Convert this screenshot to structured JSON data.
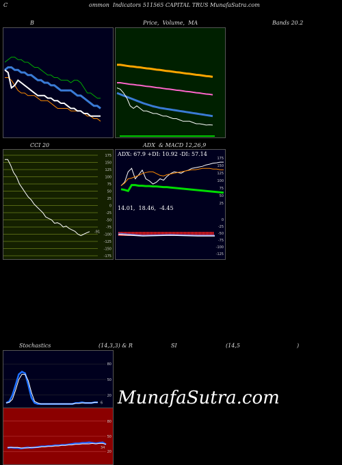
{
  "header": {
    "left_letter": "C",
    "title": "ommon  Indicators 511565 CAPITAL TRUS MunafaSutra.com"
  },
  "labels": {
    "bollinger_b": "B",
    "price_ma": "Price,  Volume,  MA",
    "bands": "Bands 20.2",
    "cci": "CCI 20",
    "adx_macd": "ADX  & MACD 12,26,9",
    "stoch_a": "Stochastics",
    "stoch_b": "(14,3,3) & R",
    "stoch_c": "SI",
    "stoch_d": "(14,5",
    "stoch_e": ")"
  },
  "adx_text": "ADX: 67.9 +DI: 10.92 -DI: 57.14",
  "macd_text": "14.01,  18.46,  -4.45",
  "cci_last_label": "-91",
  "stoch_last_label": "6",
  "rsi_last_label": "34",
  "watermark": "MunafaSutra.com",
  "colors": {
    "panel_bg_dark": "#00001e",
    "panel_bg_green": "#002000",
    "panel_bg_cci": "#142000",
    "panel_bg_rsi": "#8b0000",
    "upper_band": "#00aa00",
    "lower_band": "#ff8c00",
    "mid_band": "#3a7bd5",
    "price": "#ffffff",
    "adx_line": "#00dd00",
    "plus_di": "#ffffff",
    "minus_di": "#ff8c00",
    "stoch_k": "#1e6fff",
    "rsi_line": "#2060ff"
  },
  "chart_data": [
    {
      "type": "line",
      "name_key": "bollinger",
      "x": [
        1,
        2,
        3,
        4,
        5,
        6,
        7,
        8,
        9,
        10,
        11,
        12,
        13,
        14,
        15,
        16,
        17,
        18,
        19,
        20,
        21,
        22,
        23,
        24,
        25,
        26,
        27,
        28,
        29,
        30
      ],
      "series": [
        {
          "values": [
            48,
            49,
            50,
            50,
            49,
            49,
            48,
            48,
            47,
            46,
            46,
            45,
            44,
            43,
            43,
            42,
            42,
            41,
            41,
            41,
            40,
            41,
            41,
            40,
            38,
            36,
            36,
            35,
            34,
            34
          ]
        },
        {
          "values": [
            45,
            46,
            46,
            45,
            45,
            44,
            44,
            43,
            43,
            42,
            41,
            41,
            40,
            40,
            39,
            39,
            38,
            37,
            37,
            37,
            37,
            36,
            35,
            35,
            34,
            33,
            32,
            31,
            31,
            30
          ]
        },
        {
          "values": [
            42,
            42,
            41,
            39,
            37,
            36,
            36,
            35,
            35,
            35,
            34,
            33,
            33,
            33,
            32,
            31,
            30,
            30,
            30,
            30,
            29,
            29,
            29,
            29,
            28,
            27,
            27,
            26,
            26,
            25
          ]
        },
        {
          "values": [
            45,
            44,
            38,
            39,
            41,
            40,
            39,
            38,
            37,
            36,
            35,
            35,
            35,
            34,
            34,
            33,
            33,
            32,
            32,
            31,
            30,
            30,
            29,
            29,
            28,
            28,
            27,
            27,
            27,
            27
          ]
        }
      ]
    },
    {
      "type": "line",
      "name_key": "price_ma",
      "x": [
        1,
        2,
        3,
        4,
        5,
        6,
        7,
        8,
        9,
        10,
        11,
        12,
        13,
        14,
        15,
        16,
        17,
        18,
        19,
        20,
        21,
        22,
        23,
        24,
        25,
        26,
        27,
        28,
        29,
        30
      ],
      "series": [
        {
          "values": [
            47,
            47,
            46.8,
            46.6,
            46.4,
            46.3,
            46.1,
            46,
            45.8,
            45.6,
            45.5,
            45.3,
            45.1,
            45,
            44.8,
            44.6,
            44.5,
            44.3,
            44.1,
            44,
            43.8,
            43.6,
            43.5,
            43.3,
            43.1,
            43,
            42.8,
            42.6,
            42.5,
            42.3
          ]
        },
        {
          "values": [
            40,
            40,
            39.8,
            39.6,
            39.4,
            39.3,
            39.1,
            39,
            38.8,
            38.6,
            38.5,
            38.3,
            38.1,
            38,
            37.8,
            37.6,
            37.5,
            37.3,
            37.1,
            37,
            36.8,
            36.6,
            36.5,
            36.3,
            36.1,
            36,
            35.8,
            35.6,
            35.5,
            35.3
          ]
        },
        {
          "values": [
            36,
            35.5,
            35,
            34.5,
            34,
            33.5,
            33,
            32.5,
            32,
            31.6,
            31.2,
            30.8,
            30.5,
            30.2,
            30,
            29.8,
            29.6,
            29.4,
            29.2,
            29,
            28.8,
            28.6,
            28.4,
            28.2,
            28,
            27.8,
            27.6,
            27.4,
            27.2,
            27
          ]
        },
        {
          "values": [
            38,
            37.5,
            36,
            34,
            31,
            30,
            31,
            30,
            29,
            29,
            28.5,
            28,
            28,
            27.5,
            27,
            27,
            26.5,
            26,
            26,
            25.5,
            25,
            25,
            25,
            24.5,
            24,
            24,
            23.8,
            23.5,
            23.6,
            23.5
          ]
        }
      ]
    },
    {
      "type": "line",
      "name_key": "cci",
      "ylim": [
        -175,
        175
      ],
      "yticks": [
        175,
        150,
        125,
        100,
        75,
        50,
        25,
        0,
        -25,
        -50,
        -75,
        -100,
        -125,
        -150,
        -175
      ],
      "x": [
        1,
        2,
        3,
        4,
        5,
        6,
        7,
        8,
        9,
        10,
        11,
        12,
        13,
        14,
        15,
        16,
        17,
        18,
        19,
        20,
        21,
        22,
        23,
        24,
        25,
        26,
        27,
        28,
        29,
        30
      ],
      "values": [
        160,
        160,
        140,
        115,
        100,
        75,
        60,
        45,
        30,
        20,
        5,
        -5,
        -15,
        -25,
        -40,
        -45,
        -50,
        -62,
        -60,
        -65,
        -75,
        -72,
        -80,
        -85,
        -90,
        -100,
        -105,
        -100,
        -95,
        -91
      ]
    },
    {
      "type": "line",
      "name_key": "adx",
      "x": [
        1,
        2,
        3,
        4,
        5,
        6,
        7,
        8,
        9,
        10,
        11,
        12,
        13,
        14,
        15,
        16,
        17,
        18,
        19,
        20,
        21,
        22,
        23,
        24,
        25,
        26,
        27,
        28,
        29,
        30
      ],
      "series": [
        {
          "name": "ADX",
          "values": [
            40,
            38,
            35,
            52,
            52,
            50,
            50,
            49,
            49,
            48,
            48,
            47,
            46,
            46,
            45,
            44,
            43,
            42,
            41,
            40,
            39,
            38,
            37,
            36,
            35,
            34,
            33,
            32,
            31,
            30
          ]
        },
        {
          "name": "+DI",
          "values": [
            50,
            60,
            90,
            100,
            70,
            82,
            95,
            70,
            64,
            55,
            60,
            70,
            66,
            77,
            85,
            90,
            88,
            86,
            92,
            95,
            100,
            102,
            104,
            106,
            110,
            112,
            115,
            116,
            118,
            118
          ]
        },
        {
          "name": "-DI",
          "values": [
            50,
            58,
            70,
            72,
            76,
            80,
            85,
            88,
            90,
            90,
            85,
            80,
            78,
            82,
            84,
            86,
            88,
            90,
            92,
            94,
            96,
            96,
            98,
            100,
            100,
            100,
            98,
            98,
            96,
            96
          ]
        }
      ]
    },
    {
      "type": "line",
      "name_key": "stochastics",
      "ylim": [
        0,
        100
      ],
      "yticks": [
        80,
        50,
        20
      ],
      "x": [
        1,
        2,
        3,
        4,
        5,
        6,
        7,
        8,
        9,
        10,
        11,
        12,
        13,
        14,
        15,
        16,
        17,
        18,
        19,
        20,
        21,
        22,
        23,
        24,
        25,
        26,
        27,
        28,
        29,
        30
      ],
      "series": [
        {
          "values": [
            5,
            8,
            20,
            40,
            60,
            65,
            62,
            40,
            15,
            5,
            3,
            3,
            3,
            3,
            3,
            3,
            3,
            3,
            3,
            3,
            3,
            3,
            5,
            5,
            6,
            5,
            5,
            5,
            6,
            6
          ]
        },
        {
          "values": [
            5,
            6,
            12,
            30,
            50,
            60,
            60,
            48,
            25,
            8,
            5,
            3,
            3,
            3,
            3,
            3,
            3,
            3,
            3,
            3,
            3,
            3,
            4,
            4,
            5,
            5,
            5,
            5,
            6,
            6
          ]
        }
      ]
    },
    {
      "type": "line",
      "name_key": "rsi",
      "ylim": [
        0,
        100
      ],
      "yticks": [
        80,
        50,
        20
      ],
      "x": [
        1,
        2,
        3,
        4,
        5,
        6,
        7,
        8,
        9,
        10,
        11,
        12,
        13,
        14,
        15,
        16,
        17,
        18,
        19,
        20,
        21,
        22,
        23,
        24,
        25,
        26,
        27,
        28,
        29,
        30
      ],
      "series": [
        {
          "values": [
            27,
            28,
            27,
            27,
            26,
            27,
            28,
            27,
            28,
            29,
            30,
            30,
            31,
            31,
            32,
            32,
            33,
            33,
            34,
            35,
            36,
            36,
            37,
            37,
            38,
            37,
            36,
            37,
            38,
            34
          ]
        },
        {
          "values": [
            28,
            28,
            28,
            28,
            27,
            27,
            27,
            28,
            28,
            28,
            29,
            29,
            30,
            30,
            31,
            31,
            32,
            32,
            33,
            33,
            34,
            34,
            35,
            35,
            35,
            36,
            35,
            36,
            36,
            34
          ]
        }
      ]
    }
  ]
}
